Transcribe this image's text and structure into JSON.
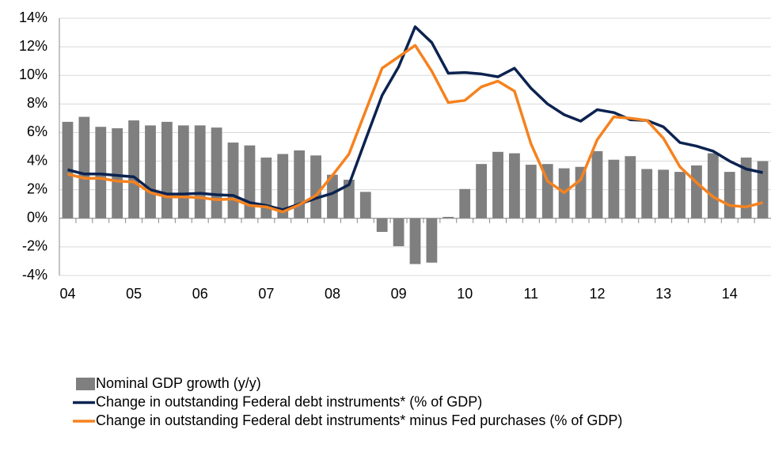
{
  "chart_data": {
    "type": "bar-line",
    "categories": [
      "04",
      null,
      null,
      null,
      "05",
      null,
      null,
      null,
      "06",
      null,
      null,
      null,
      "07",
      null,
      null,
      null,
      "08",
      null,
      null,
      null,
      "09",
      null,
      null,
      null,
      "10",
      null,
      null,
      null,
      "11",
      null,
      null,
      null,
      "12",
      null,
      null,
      null,
      "13",
      null,
      null,
      null,
      "14",
      null,
      null
    ],
    "series": [
      {
        "name": "Nominal GDP growth (y/y)",
        "kind": "bar",
        "color": "#7f7f7f",
        "values": [
          6.75,
          7.1,
          6.4,
          6.3,
          6.85,
          6.5,
          6.75,
          6.5,
          6.5,
          6.35,
          5.3,
          5.1,
          4.25,
          4.5,
          4.75,
          4.4,
          3.05,
          2.7,
          1.85,
          -0.95,
          -1.95,
          -3.2,
          -3.1,
          0.1,
          2.05,
          3.8,
          4.65,
          4.55,
          3.75,
          3.8,
          3.5,
          3.6,
          4.7,
          4.1,
          4.35,
          3.45,
          3.4,
          3.25,
          3.7,
          4.55,
          3.25,
          4.25,
          4.0
        ]
      },
      {
        "name": "Change in outstanding Federal debt instruments* (% of GDP)",
        "kind": "line",
        "color": "#0c2350",
        "values": [
          3.4,
          3.1,
          3.1,
          3.0,
          2.9,
          2.0,
          1.7,
          1.7,
          1.75,
          1.65,
          1.6,
          1.1,
          0.9,
          0.6,
          1.0,
          1.4,
          1.75,
          2.35,
          5.5,
          8.6,
          10.6,
          13.4,
          12.3,
          10.15,
          10.2,
          10.1,
          9.9,
          10.5,
          9.1,
          8.0,
          7.25,
          6.8,
          7.6,
          7.4,
          6.9,
          6.85,
          6.4,
          5.3,
          5.05,
          4.7,
          4.0,
          3.45,
          3.2
        ]
      },
      {
        "name": "Change in outstanding Federal debt instruments* minus Fed purchases (% of GDP)",
        "kind": "line",
        "color": "#f5821f",
        "values": [
          3.1,
          2.8,
          2.8,
          2.6,
          2.55,
          1.8,
          1.5,
          1.5,
          1.45,
          1.3,
          1.35,
          0.9,
          0.8,
          0.45,
          0.95,
          1.6,
          3.0,
          4.5,
          7.5,
          10.5,
          11.3,
          12.1,
          10.3,
          8.1,
          8.25,
          9.2,
          9.6,
          8.9,
          5.2,
          2.6,
          1.8,
          2.7,
          5.5,
          7.1,
          7.0,
          6.85,
          5.6,
          3.6,
          2.5,
          1.5,
          0.9,
          0.8,
          1.1
        ]
      }
    ],
    "ylim": [
      -4,
      14
    ],
    "yticks": [
      {
        "value": -4,
        "label": "-4%"
      },
      {
        "value": -2,
        "label": "-2%"
      },
      {
        "value": 0,
        "label": "0%"
      },
      {
        "value": 2,
        "label": "2%"
      },
      {
        "value": 4,
        "label": "4%"
      },
      {
        "value": 6,
        "label": "6%"
      },
      {
        "value": 8,
        "label": "8%"
      },
      {
        "value": 10,
        "label": "10%"
      },
      {
        "value": 12,
        "label": "12%"
      },
      {
        "value": 14,
        "label": "14%"
      }
    ],
    "grid": true
  }
}
